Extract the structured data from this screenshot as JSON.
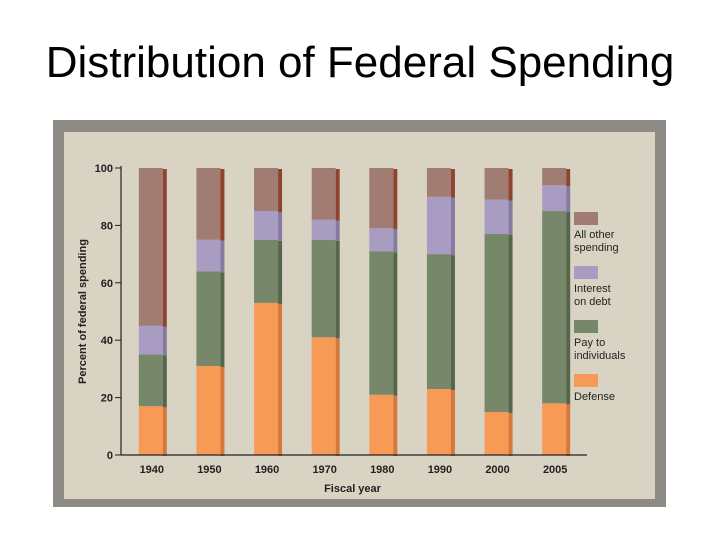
{
  "slide": {
    "title": "Distribution of Federal Spending"
  },
  "colors": {
    "frame": "#8e8a85",
    "panel": "#d9d3c3",
    "axis": "#222222",
    "series": [
      "#f79a55",
      "#76876a",
      "#a99cc2",
      "#a07c72"
    ],
    "series_side": [
      "#d4783c",
      "#56664b",
      "#857aa0",
      "#8e4430"
    ]
  },
  "chart_data": {
    "type": "bar",
    "stacked": true,
    "title": "",
    "xlabel": "Fiscal year",
    "ylabel": "Percent of federal spending",
    "ylim": [
      0,
      100
    ],
    "yticks": [
      0,
      20,
      40,
      60,
      80,
      100
    ],
    "categories": [
      "1940",
      "1950",
      "1960",
      "1970",
      "1980",
      "1990",
      "2000",
      "2005"
    ],
    "series": [
      {
        "name": "Defense",
        "values": [
          17,
          31,
          53,
          41,
          21,
          23,
          15,
          18
        ]
      },
      {
        "name": "Pay to individuals",
        "values": [
          18,
          33,
          22,
          34,
          50,
          47,
          62,
          67
        ]
      },
      {
        "name": "Interest on debt",
        "values": [
          10,
          11,
          10,
          7,
          8,
          20,
          12,
          9
        ]
      },
      {
        "name": "All other spending",
        "values": [
          55,
          25,
          15,
          18,
          21,
          10,
          11,
          6
        ]
      }
    ],
    "legend": {
      "position": "right",
      "entries": [
        {
          "label_lines": [
            "All other",
            "spending"
          ],
          "series": "All other spending"
        },
        {
          "label_lines": [
            "Interest",
            "on debt"
          ],
          "series": "Interest on debt"
        },
        {
          "label_lines": [
            "Pay to",
            "individuals"
          ],
          "series": "Pay to individuals"
        },
        {
          "label_lines": [
            "Defense"
          ],
          "series": "Defense"
        }
      ]
    }
  }
}
